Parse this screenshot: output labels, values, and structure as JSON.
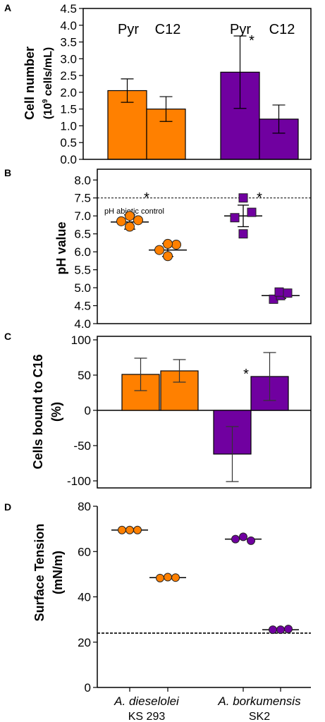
{
  "colors": {
    "orange": "#FF8000",
    "purple": "#7000A0"
  },
  "x_labels": [
    {
      "italic": "A. dieselolei",
      "strain": "KS 293"
    },
    {
      "italic": "A. borkumensis",
      "strain": "SK2"
    }
  ],
  "chart_data": [
    {
      "panel": "A",
      "type": "bar",
      "ylabel_line1": "Cell number",
      "ylabel_line2_pre": "(10",
      "ylabel_line2_sup": "9",
      "ylabel_line2_post": " cells/mL)",
      "ylim": [
        0,
        4.5
      ],
      "yticks": [
        "0.0",
        "0.5",
        "1.0",
        "1.5",
        "2.0",
        "2.5",
        "3.0",
        "3.5",
        "4.0",
        "4.5"
      ],
      "bar_labels": [
        "Pyr",
        "C12",
        "Pyr",
        "C12"
      ],
      "bars": [
        {
          "value": 2.05,
          "err": 0.35,
          "color": "orange"
        },
        {
          "value": 1.5,
          "err": 0.37,
          "color": "orange"
        },
        {
          "value": 2.6,
          "err": 1.08,
          "color": "purple"
        },
        {
          "value": 1.2,
          "err": 0.42,
          "color": "purple"
        }
      ],
      "annotations": [
        "*"
      ]
    },
    {
      "panel": "B",
      "type": "scatter",
      "ylabel": "pH value",
      "ylim": [
        4.0,
        8.3
      ],
      "yticks": [
        "4.0",
        "4.5",
        "5.0",
        "5.5",
        "6.0",
        "6.5",
        "7.0",
        "7.5",
        "8.0"
      ],
      "reference": {
        "value": 7.5,
        "label": "pH abiotic control"
      },
      "groups": [
        {
          "color": "orange",
          "marker": "circle",
          "mean": 6.83,
          "err": 0.2,
          "points": [
            6.7,
            6.85,
            6.88,
            7.0
          ]
        },
        {
          "color": "orange",
          "marker": "circle",
          "mean": 6.05,
          "err": 0.18,
          "points": [
            5.88,
            6.05,
            6.2,
            6.22
          ]
        },
        {
          "color": "purple",
          "marker": "square",
          "mean": 7.0,
          "err": 0.3,
          "points": [
            6.5,
            6.95,
            7.1,
            7.5
          ]
        },
        {
          "color": "purple",
          "marker": "square",
          "mean": 4.78,
          "err": 0.08,
          "points": [
            4.68,
            4.78,
            4.85,
            4.88
          ]
        }
      ],
      "annotations": [
        "*",
        "*"
      ]
    },
    {
      "panel": "C",
      "type": "bar",
      "ylabel_line1": "Cells bound to C16",
      "ylabel_line2": "(%)",
      "ylim": [
        -110,
        105
      ],
      "yticks": [
        "-100",
        "-50",
        "0",
        "50",
        "100"
      ],
      "bars": [
        {
          "value": 51,
          "err": 23,
          "color": "orange"
        },
        {
          "value": 56,
          "err": 16,
          "color": "orange"
        },
        {
          "value": -62,
          "err": 39,
          "color": "purple"
        },
        {
          "value": 48,
          "err": 34,
          "color": "purple"
        }
      ],
      "annotations": [
        "*"
      ]
    },
    {
      "panel": "D",
      "type": "scatter",
      "ylabel_line1": "Surface Tension",
      "ylabel_line2": "(mN/m)",
      "ylim": [
        0,
        80
      ],
      "yticks": [
        "0",
        "20",
        "40",
        "60",
        "80"
      ],
      "reference": {
        "value": 24
      },
      "groups": [
        {
          "color": "orange",
          "marker": "circle",
          "mean": 69.5,
          "points": [
            69.5,
            69.5,
            69.5
          ]
        },
        {
          "color": "orange",
          "marker": "circle",
          "mean": 48.5,
          "points": [
            48.3,
            48.7,
            48.5
          ]
        },
        {
          "color": "purple",
          "marker": "circle",
          "mean": 65.5,
          "points": [
            65.5,
            66.5,
            64.8
          ]
        },
        {
          "color": "purple",
          "marker": "circle",
          "mean": 25.5,
          "points": [
            25.5,
            25.5,
            25.8
          ]
        }
      ]
    }
  ]
}
